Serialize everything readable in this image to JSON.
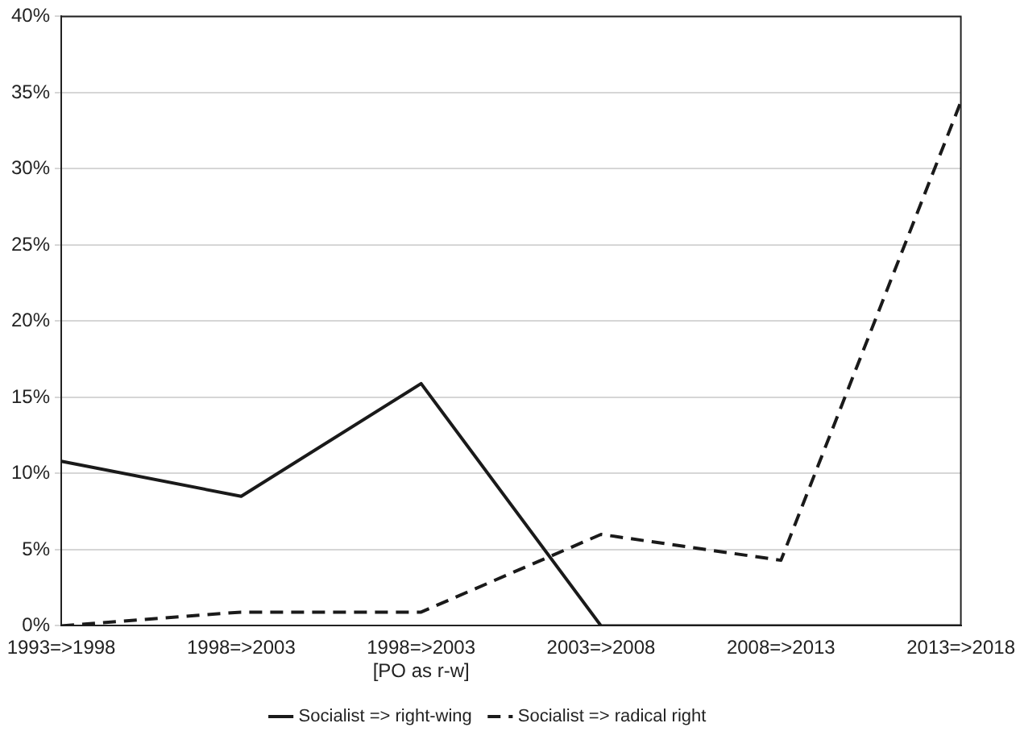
{
  "chart_data": {
    "type": "line",
    "categories": [
      "1993=>1998",
      "1998=>2003",
      "1998=>2003\n[PO as r-w]",
      "2003=>2008",
      "2008=>2013",
      "2013=>2018"
    ],
    "series": [
      {
        "name": "Socialist => right-wing",
        "color": "#1a1a1a",
        "line_style": "solid",
        "values": [
          10.8,
          8.5,
          15.9,
          0,
          0,
          0
        ]
      },
      {
        "name": "Socialist => radical right",
        "color": "#1a1a1a",
        "line_style": "dashed",
        "values": [
          0,
          0.9,
          0.9,
          6.0,
          4.3,
          34.4
        ]
      }
    ],
    "ylim": [
      0,
      40
    ],
    "yticks": [
      {
        "value": 0,
        "label": "0%"
      },
      {
        "value": 5,
        "label": "5%"
      },
      {
        "value": 10,
        "label": "10%"
      },
      {
        "value": 15,
        "label": "15%"
      },
      {
        "value": 20,
        "label": "20%"
      },
      {
        "value": 25,
        "label": "25%"
      },
      {
        "value": 30,
        "label": "30%"
      },
      {
        "value": 35,
        "label": "35%"
      },
      {
        "value": 40,
        "label": "40%"
      }
    ],
    "grid": "y",
    "legend": "bottom",
    "marker": "none"
  }
}
